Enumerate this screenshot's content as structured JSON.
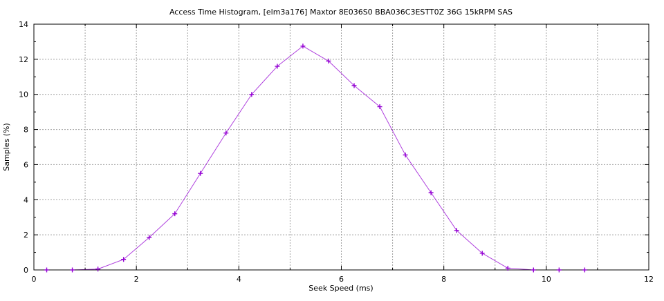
{
  "title": "Access Time Histogram, [elm3a176] Maxtor 8E036S0 BBA036C3ESTT0Z 36G 15kRPM SAS",
  "colors": {
    "background": "#ffffff",
    "axis": "#000000",
    "grid": "#a0a0a0",
    "series": "#9400d3"
  },
  "chart_data": {
    "type": "line",
    "title": "Access Time Histogram, [elm3a176] Maxtor 8E036S0 BBA036C3ESTT0Z 36G 15kRPM SAS",
    "xlabel": "Seek Speed (ms)",
    "ylabel": "Samples (%)",
    "xlim": [
      0,
      12
    ],
    "ylim": [
      0,
      14
    ],
    "x_major_ticks": [
      0,
      2,
      4,
      6,
      8,
      10,
      12
    ],
    "x_minor_step": 1,
    "y_major_ticks": [
      0,
      2,
      4,
      6,
      8,
      10,
      12,
      14
    ],
    "y_minor_step": 1,
    "grid": true,
    "legend_position": "none",
    "series": [
      {
        "name": "samples",
        "color": "#9400d3",
        "marker": "plus",
        "x": [
          0.25,
          0.75,
          1.25,
          1.75,
          2.25,
          2.75,
          3.25,
          3.75,
          4.25,
          4.75,
          5.25,
          5.75,
          6.25,
          6.75,
          7.25,
          7.75,
          8.25,
          8.75,
          9.25,
          9.75,
          10.25,
          10.75
        ],
        "y": [
          0,
          0,
          0.05,
          0.6,
          1.85,
          3.2,
          5.5,
          7.8,
          10.0,
          11.6,
          12.75,
          11.9,
          10.5,
          9.3,
          6.55,
          4.4,
          2.25,
          0.95,
          0.1,
          0,
          0,
          0
        ]
      }
    ]
  }
}
